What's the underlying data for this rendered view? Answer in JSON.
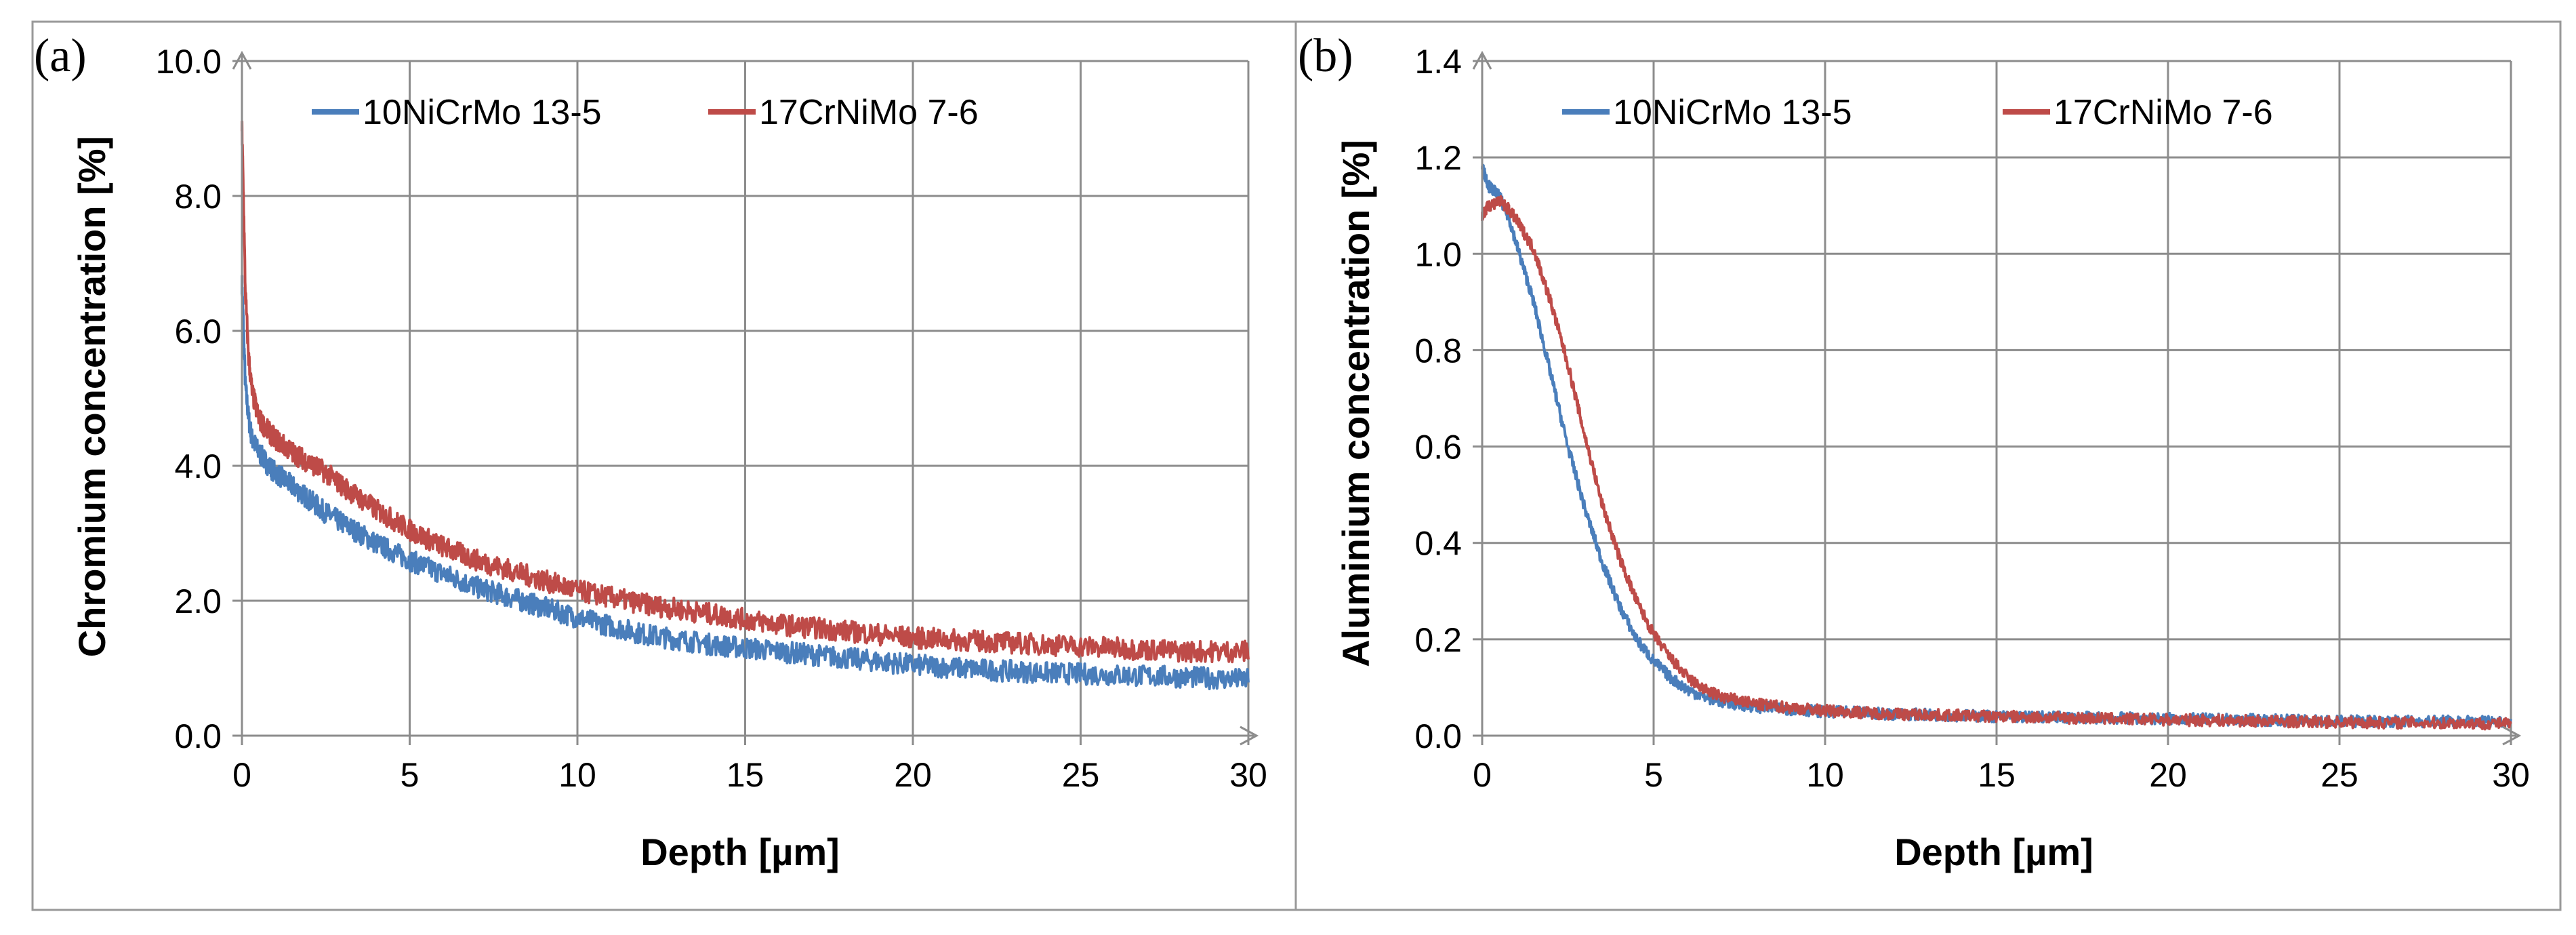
{
  "chart_data": [
    {
      "panel_label": "(a)",
      "type": "line",
      "title": "",
      "xlabel": "Depth [µm]",
      "ylabel": "Chromium concentration [%]",
      "xlim": [
        0,
        30
      ],
      "ylim": [
        0,
        10
      ],
      "grid": true,
      "legend_position": "top",
      "x_ticks": [
        0,
        5,
        10,
        15,
        20,
        25,
        30
      ],
      "x_tick_labels": [
        "0",
        "5",
        "10",
        "15",
        "20",
        "25",
        "30"
      ],
      "y_ticks": [
        0,
        2,
        4,
        6,
        8,
        10
      ],
      "y_tick_labels": [
        "0.0",
        "2.0",
        "4.0",
        "6.0",
        "8.0",
        "10.0"
      ],
      "series": [
        {
          "name": "10NiCrMo 13-5",
          "color": "#4a7ebb",
          "noise": 0.16,
          "x": [
            0,
            0.05,
            0.1,
            0.2,
            0.3,
            0.5,
            0.8,
            1,
            1.5,
            2,
            2.5,
            3,
            4,
            5,
            6,
            7,
            8,
            9,
            10,
            12,
            14,
            16,
            18,
            20,
            22,
            24,
            26,
            28,
            30
          ],
          "values": [
            6.7,
            6.0,
            5.2,
            4.7,
            4.4,
            4.2,
            4.0,
            3.9,
            3.7,
            3.5,
            3.3,
            3.15,
            2.85,
            2.6,
            2.4,
            2.2,
            2.05,
            1.9,
            1.75,
            1.5,
            1.35,
            1.25,
            1.15,
            1.05,
            0.98,
            0.93,
            0.9,
            0.87,
            0.83
          ]
        },
        {
          "name": "17CrNiMo 7-6",
          "color": "#be4b48",
          "noise": 0.16,
          "x": [
            0,
            0.05,
            0.1,
            0.2,
            0.3,
            0.5,
            0.8,
            1,
            1.5,
            2,
            2.5,
            3,
            4,
            5,
            6,
            7,
            8,
            9,
            10,
            12,
            14,
            16,
            18,
            20,
            22,
            24,
            26,
            28,
            30
          ],
          "values": [
            9.0,
            7.9,
            6.6,
            5.6,
            5.1,
            4.7,
            4.5,
            4.4,
            4.2,
            4.05,
            3.9,
            3.7,
            3.35,
            3.05,
            2.8,
            2.6,
            2.45,
            2.3,
            2.15,
            1.95,
            1.8,
            1.65,
            1.55,
            1.45,
            1.4,
            1.35,
            1.3,
            1.25,
            1.25
          ]
        }
      ]
    },
    {
      "panel_label": "(b)",
      "type": "line",
      "title": "",
      "xlabel": "Depth [µm]",
      "ylabel": "Aluminium concentration [%]",
      "xlim": [
        0,
        30
      ],
      "ylim": [
        0,
        1.4
      ],
      "grid": true,
      "legend_position": "top",
      "x_ticks": [
        0,
        5,
        10,
        15,
        20,
        25,
        30
      ],
      "x_tick_labels": [
        "0",
        "5",
        "10",
        "15",
        "20",
        "25",
        "30"
      ],
      "y_ticks": [
        0,
        0.2,
        0.4,
        0.6,
        0.8,
        1.0,
        1.2,
        1.4
      ],
      "y_tick_labels": [
        "0.0",
        "0.2",
        "0.4",
        "0.6",
        "0.8",
        "1.0",
        "1.2",
        "1.4"
      ],
      "series": [
        {
          "name": "10NiCrMo 13-5",
          "color": "#4a7ebb",
          "noise": 0.012,
          "x": [
            0,
            0.2,
            0.5,
            0.8,
            1,
            1.5,
            2,
            2.5,
            3,
            3.5,
            4,
            4.5,
            5,
            5.5,
            6,
            6.5,
            7,
            8,
            9,
            10,
            12,
            15,
            20,
            25,
            30
          ],
          "values": [
            1.18,
            1.14,
            1.12,
            1.07,
            1.02,
            0.9,
            0.75,
            0.6,
            0.47,
            0.36,
            0.27,
            0.2,
            0.155,
            0.12,
            0.095,
            0.08,
            0.07,
            0.06,
            0.055,
            0.05,
            0.045,
            0.04,
            0.035,
            0.03,
            0.03
          ]
        },
        {
          "name": "17CrNiMo 7-6",
          "color": "#be4b48",
          "noise": 0.012,
          "x": [
            0,
            0.2,
            0.5,
            0.8,
            1,
            1.5,
            2,
            2.5,
            3,
            3.5,
            4,
            4.5,
            5,
            5.5,
            6,
            6.5,
            7,
            8,
            9,
            10,
            12,
            15,
            20,
            25,
            30
          ],
          "values": [
            1.08,
            1.1,
            1.11,
            1.09,
            1.07,
            1.01,
            0.9,
            0.77,
            0.62,
            0.48,
            0.37,
            0.28,
            0.21,
            0.16,
            0.12,
            0.095,
            0.08,
            0.065,
            0.058,
            0.052,
            0.045,
            0.04,
            0.033,
            0.028,
            0.025
          ]
        }
      ]
    }
  ]
}
